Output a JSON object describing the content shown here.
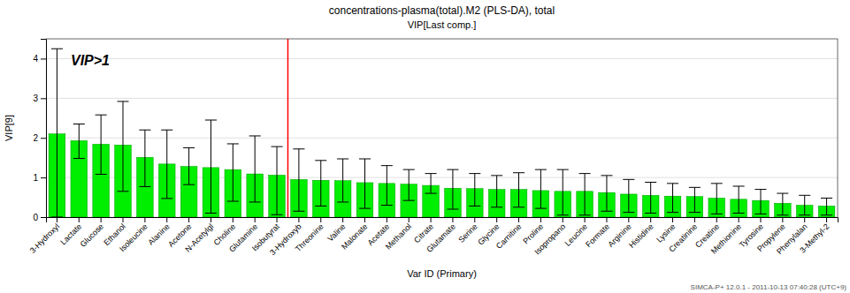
{
  "chart_data": {
    "type": "bar",
    "title": "concentrations-plasma(total).M2 (PLS-DA), total",
    "subtitle": "VIP[Last comp.]",
    "x_label": "Var ID (Primary)",
    "y_label": "VIP[9]",
    "footer": "SIMCA-P+ 12.0.1 - 2011-10-13 07:40:28 (UTC+9)",
    "annotation": "VIP>1",
    "color": "#00EE00",
    "grid": true,
    "ylim": [
      0.0,
      4.5
    ],
    "yticks": [
      0,
      1,
      2,
      3,
      4
    ],
    "categories": [
      "3-Hydroxyl",
      "Lactate",
      "Glucose",
      "Ethanol",
      "Isoleucine",
      "Alanine",
      "Acetone",
      "N-Acetylgl",
      "Choline",
      "Glutamine",
      "Isobutyrat",
      "3-Hydroxyb",
      "Threonine",
      "Valine",
      "Malonate",
      "Acetate",
      "Methanol",
      "Citrate",
      "Glutamate",
      "Serine",
      "Glycine",
      "Carnitine",
      "Proline",
      "Isopropano",
      "Leucine",
      "Formate",
      "Arginine",
      "Histidine",
      "Lysine",
      "Creatinine",
      "Creatine",
      "Methionine",
      "Tyrosine",
      "Propylene",
      "Phenylalan",
      "3-Methyl-2"
    ],
    "values": [
      2.1,
      1.93,
      1.84,
      1.82,
      1.51,
      1.34,
      1.28,
      1.25,
      1.2,
      1.09,
      1.06,
      0.95,
      0.93,
      0.92,
      0.87,
      0.85,
      0.83,
      0.8,
      0.73,
      0.72,
      0.7,
      0.7,
      0.67,
      0.65,
      0.65,
      0.62,
      0.58,
      0.55,
      0.53,
      0.52,
      0.48,
      0.45,
      0.42,
      0.35,
      0.3,
      0.28
    ],
    "err_low": [
      0.0,
      1.48,
      1.08,
      0.65,
      0.77,
      0.47,
      0.82,
      0.1,
      0.4,
      0.38,
      0.06,
      0.15,
      0.28,
      0.38,
      0.22,
      0.3,
      0.42,
      0.6,
      0.2,
      0.28,
      0.25,
      0.25,
      0.22,
      0.05,
      0.05,
      0.15,
      0.12,
      0.1,
      0.12,
      0.12,
      0.08,
      0.1,
      0.08,
      0.05,
      0.05,
      0.05
    ],
    "err_high": [
      4.25,
      2.35,
      2.58,
      2.92,
      2.2,
      2.2,
      1.75,
      2.45,
      1.85,
      2.05,
      1.78,
      1.72,
      1.43,
      1.47,
      1.47,
      1.3,
      1.2,
      1.1,
      1.2,
      1.1,
      1.05,
      1.12,
      1.2,
      1.2,
      1.1,
      1.05,
      0.95,
      0.88,
      0.85,
      0.75,
      0.85,
      0.78,
      0.7,
      0.6,
      0.55,
      0.48
    ],
    "divider_after_index": 10
  }
}
